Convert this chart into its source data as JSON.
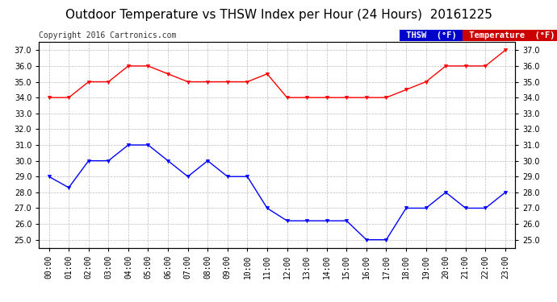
{
  "title": "Outdoor Temperature vs THSW Index per Hour (24 Hours)  20161225",
  "copyright": "Copyright 2016 Cartronics.com",
  "hours": [
    "00:00",
    "01:00",
    "02:00",
    "03:00",
    "04:00",
    "05:00",
    "06:00",
    "07:00",
    "08:00",
    "09:00",
    "10:00",
    "11:00",
    "12:00",
    "13:00",
    "14:00",
    "15:00",
    "16:00",
    "17:00",
    "18:00",
    "19:00",
    "20:00",
    "21:00",
    "22:00",
    "23:00"
  ],
  "temperature": [
    34.0,
    34.0,
    35.0,
    35.0,
    36.0,
    36.0,
    35.5,
    35.0,
    35.0,
    35.0,
    35.0,
    35.5,
    34.0,
    34.0,
    34.0,
    34.0,
    34.0,
    34.0,
    34.5,
    35.0,
    36.0,
    36.0,
    36.0,
    37.0
  ],
  "thsw": [
    29.0,
    28.3,
    30.0,
    30.0,
    31.0,
    31.0,
    30.0,
    29.0,
    30.0,
    29.0,
    29.0,
    27.0,
    26.2,
    26.2,
    26.2,
    26.2,
    25.0,
    25.0,
    27.0,
    27.0,
    28.0,
    27.0,
    27.0,
    28.0
  ],
  "temp_color": "#ff0000",
  "thsw_color": "#0000ff",
  "bg_color": "#ffffff",
  "grid_color": "#bbbbbb",
  "ylim_min": 24.5,
  "ylim_max": 37.5,
  "yticks": [
    25.0,
    26.0,
    27.0,
    28.0,
    29.0,
    30.0,
    31.0,
    32.0,
    33.0,
    34.0,
    35.0,
    36.0,
    37.0
  ],
  "legend_thsw_bg": "#0000cc",
  "legend_temp_bg": "#cc0000",
  "title_fontsize": 11,
  "tick_fontsize": 7,
  "copyright_fontsize": 7
}
